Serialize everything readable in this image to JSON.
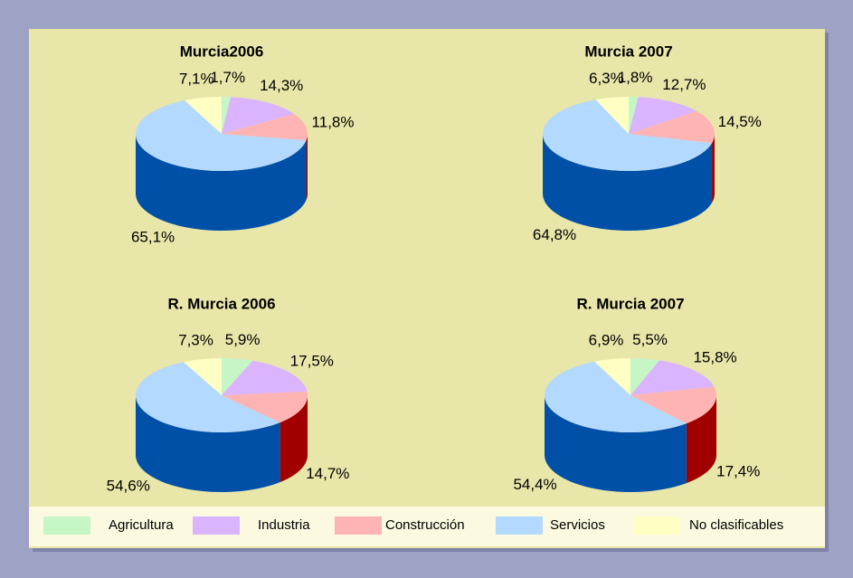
{
  "legend": {
    "categories": [
      "Agricultura",
      "Industria",
      "Construcción",
      "Servicios",
      "No clasificables"
    ],
    "colors": [
      "#c6f5c6",
      "#dab4ff",
      "#ffb4b4",
      "#b4d9ff",
      "#ffffc4"
    ],
    "side_colors": [
      "#2f9a2f",
      "#7a3aa8",
      "#a00000",
      "#0050a8",
      "#a8a830"
    ]
  },
  "chart_data": [
    {
      "type": "pie",
      "title": "Murcia2006",
      "values": [
        1.7,
        14.3,
        11.8,
        65.1,
        7.1
      ],
      "value_labels": [
        "1,7%",
        "14,3%",
        "11,8%",
        "65,1%",
        "7,1%"
      ]
    },
    {
      "type": "pie",
      "title": "Murcia 2007",
      "values": [
        1.8,
        12.7,
        14.5,
        64.8,
        6.3
      ],
      "value_labels": [
        "1,8%",
        "12,7%",
        "14,5%",
        "64,8%",
        "6,3%"
      ]
    },
    {
      "type": "pie",
      "title": "R. Murcia 2006",
      "values": [
        5.9,
        17.5,
        14.7,
        54.6,
        7.3
      ],
      "value_labels": [
        "5,9%",
        "17,5%",
        "14,7%",
        "54,6%",
        "7,3%"
      ]
    },
    {
      "type": "pie",
      "title": "R. Murcia 2007",
      "values": [
        5.5,
        15.8,
        17.4,
        54.4,
        6.9
      ],
      "value_labels": [
        "5,5%",
        "15,8%",
        "17,4%",
        "54,4%",
        "6,9%"
      ]
    }
  ]
}
